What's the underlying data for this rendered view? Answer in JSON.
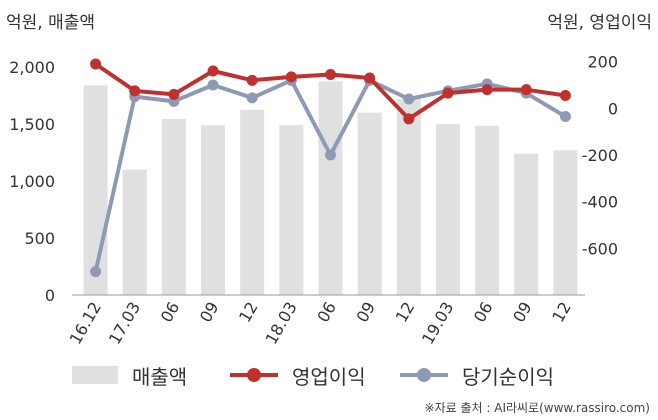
{
  "chart_data": {
    "type": "bar+line",
    "categories": [
      "16.12",
      "17.03",
      "06",
      "09",
      "12",
      "18.03",
      "06",
      "09",
      "12",
      "19.03",
      "06",
      "09",
      "12"
    ],
    "left_axis": {
      "title": "억원, 매출액",
      "range": [
        0,
        2150
      ],
      "ticks": [
        "0",
        "500",
        "1,000",
        "1,500",
        "2,000"
      ],
      "tick_values": [
        0,
        500,
        1000,
        1500,
        2000
      ]
    },
    "right_axis": {
      "title": "억원, 영업이익",
      "range": [
        -800,
        250
      ],
      "ticks": [
        "-600",
        "-400",
        "-200",
        "0",
        "200"
      ],
      "tick_values": [
        -600,
        -400,
        -200,
        0,
        200
      ]
    },
    "series": [
      {
        "name": "매출액",
        "type": "bar",
        "axis": "left",
        "color": "#e0e0e0",
        "values": [
          1840,
          1100,
          1545,
          1490,
          1625,
          1490,
          1875,
          1600,
          1720,
          1500,
          1485,
          1240,
          1270
        ]
      },
      {
        "name": "영업이익",
        "type": "line",
        "axis": "right",
        "color": "#c0312e",
        "values": [
          190,
          75,
          60,
          160,
          120,
          135,
          145,
          130,
          -45,
          65,
          80,
          80,
          55
        ]
      },
      {
        "name": "당기순이익",
        "type": "line",
        "axis": "right",
        "color": "#8e9ab5",
        "values": [
          -700,
          50,
          30,
          100,
          45,
          120,
          -200,
          120,
          40,
          75,
          105,
          65,
          -35
        ]
      }
    ],
    "grid": false,
    "legend_position": "bottom"
  },
  "source_text": "※자료 출처 : AI라씨로(www.rassiro.com)"
}
